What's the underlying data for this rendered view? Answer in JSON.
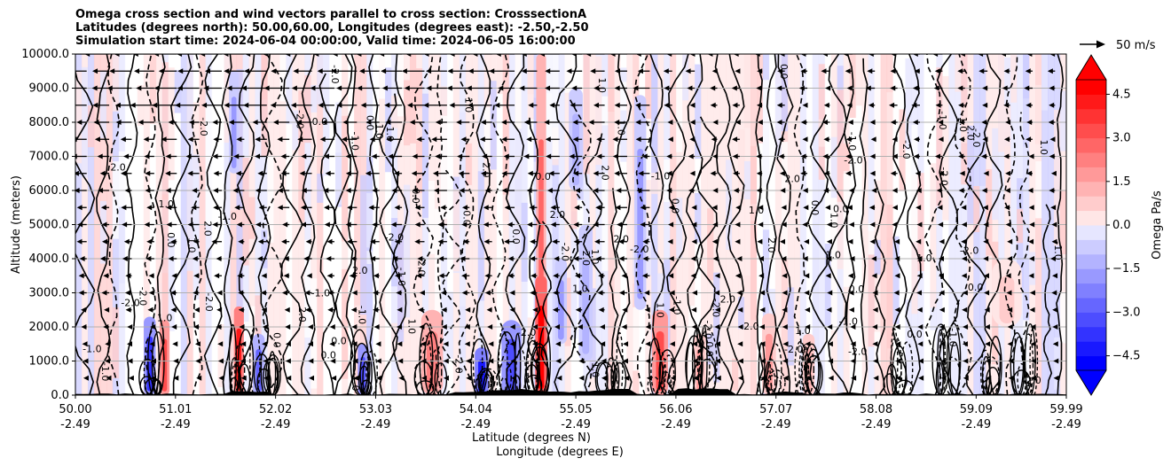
{
  "figure": {
    "title_lines": [
      "Omega cross section and wind vectors parallel to cross section: CrosssectionA",
      "Latitudes (degrees north): 50.00,60.00, Longitudes (degrees east): -2.50,-2.50",
      "Simulation start time: 2024-06-04 00:00:00, Valid time: 2024-06-05 16:00:00"
    ]
  },
  "chart_data": {
    "type": "heatmap",
    "xlabel_lines": [
      "Latitude (degrees N)",
      "Longitude (degrees E)"
    ],
    "ylabel": "Altitude (meters)",
    "x_ticks": [
      {
        "lat": "50.00",
        "lon": "-2.49",
        "frac": 0.0
      },
      {
        "lat": "51.01",
        "lon": "-2.49",
        "frac": 0.101
      },
      {
        "lat": "52.02",
        "lon": "-2.49",
        "frac": 0.202
      },
      {
        "lat": "53.03",
        "lon": "-2.49",
        "frac": 0.303
      },
      {
        "lat": "54.04",
        "lon": "-2.49",
        "frac": 0.404
      },
      {
        "lat": "55.05",
        "lon": "-2.49",
        "frac": 0.505
      },
      {
        "lat": "56.06",
        "lon": "-2.49",
        "frac": 0.606
      },
      {
        "lat": "57.07",
        "lon": "-2.49",
        "frac": 0.707
      },
      {
        "lat": "58.08",
        "lon": "-2.49",
        "frac": 0.808
      },
      {
        "lat": "59.09",
        "lon": "-2.49",
        "frac": 0.909
      },
      {
        "lat": "59.99",
        "lon": "-2.49",
        "frac": 1.0
      }
    ],
    "ylim": [
      0,
      10000
    ],
    "y_ticks": [
      0,
      1000,
      2000,
      3000,
      4000,
      5000,
      6000,
      7000,
      8000,
      9000,
      10000
    ],
    "y_tick_labels": [
      "0.0",
      "1000.0",
      "2000.0",
      "3000.0",
      "4000.0",
      "5000.0",
      "6000.0",
      "7000.0",
      "8000.0",
      "9000.0",
      "10000.0"
    ],
    "grid": "horizontal",
    "colorbar": {
      "label": "Omega Pa/s",
      "range": [
        -5,
        5
      ],
      "extend": "both",
      "ticks": [
        4.5,
        3.0,
        1.5,
        0.0,
        -1.5,
        -3.0,
        -4.5
      ],
      "tick_labels": [
        "4.5",
        "3.0",
        "1.5",
        "0.0",
        "−1.5",
        "−3.0",
        "−4.5"
      ],
      "cmap": "bwr",
      "colors": {
        "negative": "#0000ff",
        "zero": "#ffffff",
        "positive": "#ff0000"
      }
    },
    "quiver_key": {
      "label": "50 m/s",
      "speed": 50
    },
    "contour_labels": [
      "0.0",
      "1.0",
      "-1.0",
      "2.0",
      "-2.0"
    ],
    "omega_features": [
      {
        "x_frac": 0.075,
        "z0": 0,
        "z1": 2300,
        "width": 0.012,
        "value": -4.0
      },
      {
        "x_frac": 0.09,
        "z0": 0,
        "z1": 2200,
        "width": 0.01,
        "value": 3.5
      },
      {
        "x_frac": 0.16,
        "z0": 6500,
        "z1": 9500,
        "width": 0.01,
        "value": -2.0
      },
      {
        "x_frac": 0.165,
        "z0": 0,
        "z1": 2600,
        "width": 0.01,
        "value": 4.5
      },
      {
        "x_frac": 0.185,
        "z0": 0,
        "z1": 1800,
        "width": 0.012,
        "value": -3.0
      },
      {
        "x_frac": 0.29,
        "z0": 0,
        "z1": 1500,
        "width": 0.01,
        "value": -3.5
      },
      {
        "x_frac": 0.36,
        "z0": 0,
        "z1": 2500,
        "width": 0.022,
        "value": 2.5
      },
      {
        "x_frac": 0.41,
        "z0": 0,
        "z1": 1400,
        "width": 0.014,
        "value": -4.5
      },
      {
        "x_frac": 0.44,
        "z0": 0,
        "z1": 2200,
        "width": 0.02,
        "value": -3.5
      },
      {
        "x_frac": 0.47,
        "z0": 0,
        "z1": 10000,
        "width": 0.01,
        "value": 3.0
      },
      {
        "x_frac": 0.47,
        "z0": 0,
        "z1": 3500,
        "width": 0.012,
        "value": 5.0
      },
      {
        "x_frac": 0.49,
        "z0": 1500,
        "z1": 4000,
        "width": 0.012,
        "value": -2.0
      },
      {
        "x_frac": 0.505,
        "z0": 6000,
        "z1": 9000,
        "width": 0.014,
        "value": -1.5
      },
      {
        "x_frac": 0.515,
        "z0": 1000,
        "z1": 5000,
        "width": 0.014,
        "value": -1.5
      },
      {
        "x_frac": 0.57,
        "z0": 2500,
        "z1": 8800,
        "width": 0.012,
        "value": -2.0
      },
      {
        "x_frac": 0.59,
        "z0": 0,
        "z1": 2500,
        "width": 0.016,
        "value": 3.5
      },
      {
        "x_frac": 0.63,
        "z0": 0,
        "z1": 1800,
        "width": 0.012,
        "value": 2.0
      },
      {
        "x_frac": 0.7,
        "z0": 0,
        "z1": 2400,
        "width": 0.014,
        "value": 2.0
      },
      {
        "x_frac": 0.74,
        "z0": 0,
        "z1": 1800,
        "width": 0.012,
        "value": 1.5
      },
      {
        "x_frac": 0.94,
        "z0": 2000,
        "z1": 4000,
        "width": 0.03,
        "value": 0.8
      }
    ]
  }
}
